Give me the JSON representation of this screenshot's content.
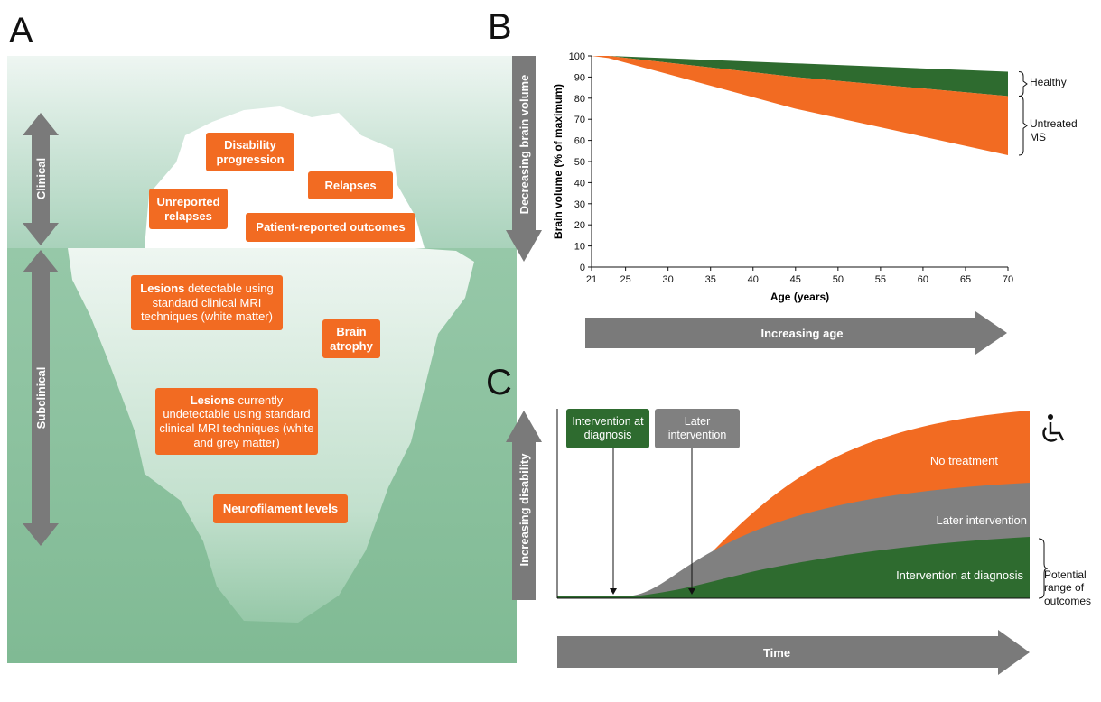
{
  "panel_labels": [
    "A",
    "B",
    "C"
  ],
  "iceberg": {
    "axis_labels": {
      "clinical": "Clinical",
      "subclinical": "Subclinical"
    },
    "boxes": [
      {
        "text": "Disability progression"
      },
      {
        "text": "Relapses"
      },
      {
        "text": "Unreported relapses"
      },
      {
        "text": "Patient-reported outcomes"
      },
      {
        "bold": "Lesions",
        "text": " detectable using standard clinical MRI techniques (white matter)"
      },
      {
        "text": "Brain atrophy"
      },
      {
        "bold": "Lesions",
        "text": " currently undetectable using standard clinical MRI techniques (white and grey matter)"
      },
      {
        "text": "Neurofilament levels"
      }
    ]
  },
  "chart_data": {
    "type": "band",
    "ylabel": "Brain volume (% of maximum)",
    "xlabel": "Age (years)",
    "y_arrow": "Decreasing brain volume",
    "x_arrow": "Increasing age",
    "x": [
      21,
      23,
      45,
      70
    ],
    "series": [
      {
        "name": "Healthy",
        "color": "#2e6b2f",
        "values": [
          100,
          100,
          96.5,
          92.5
        ],
        "lower": [
          100,
          100,
          90,
          81
        ]
      },
      {
        "name": "Untreated MS",
        "color": "#f26b22",
        "values": [
          100,
          100,
          90,
          81
        ],
        "lower": [
          100,
          99,
          75,
          53
        ]
      }
    ],
    "xlim": [
      21,
      70
    ],
    "ylim": [
      0,
      100
    ],
    "xticks": [
      21,
      25,
      30,
      35,
      40,
      45,
      50,
      55,
      60,
      65,
      70
    ],
    "yticks": [
      0,
      10,
      20,
      30,
      40,
      50,
      60,
      70,
      80,
      90,
      100
    ]
  },
  "panel_c": {
    "y_arrow": "Increasing disability",
    "x_arrow": "Time",
    "callouts": [
      "Intervention at diagnosis",
      "Later intervention"
    ],
    "area_labels": [
      "No treatment",
      "Later intervention",
      "Intervention at diagnosis"
    ],
    "brace_label": "Potential range of outcomes"
  }
}
